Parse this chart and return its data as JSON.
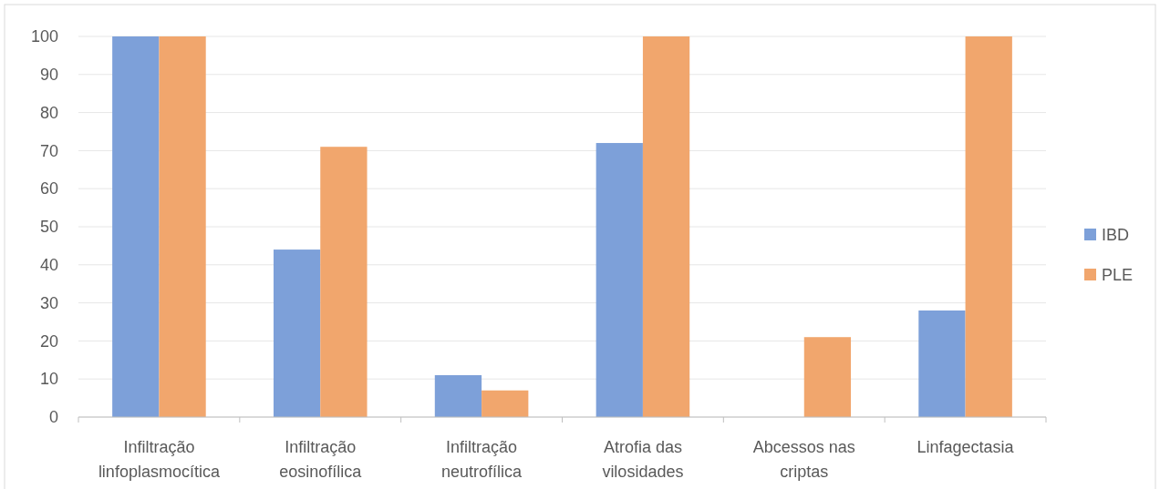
{
  "chart_data": {
    "type": "bar",
    "categories": [
      "Infiltração linfoplasmocítica",
      "Infiltração eosinofílica",
      "Infiltração neutrofílica",
      "Atrofia das vilosidades",
      "Abcessos nas criptas",
      "Linfagectasia"
    ],
    "series": [
      {
        "name": "IBD",
        "color": "#7da0d9",
        "values": [
          100,
          44,
          11,
          72,
          0,
          28
        ]
      },
      {
        "name": "PLE",
        "color": "#f1a66d",
        "values": [
          100,
          71,
          7,
          100,
          21,
          100
        ]
      }
    ],
    "ylim": [
      0,
      100
    ],
    "yticks": [
      0,
      10,
      20,
      30,
      40,
      50,
      60,
      70,
      80,
      90,
      100
    ],
    "grid": "y",
    "legend": "right"
  }
}
